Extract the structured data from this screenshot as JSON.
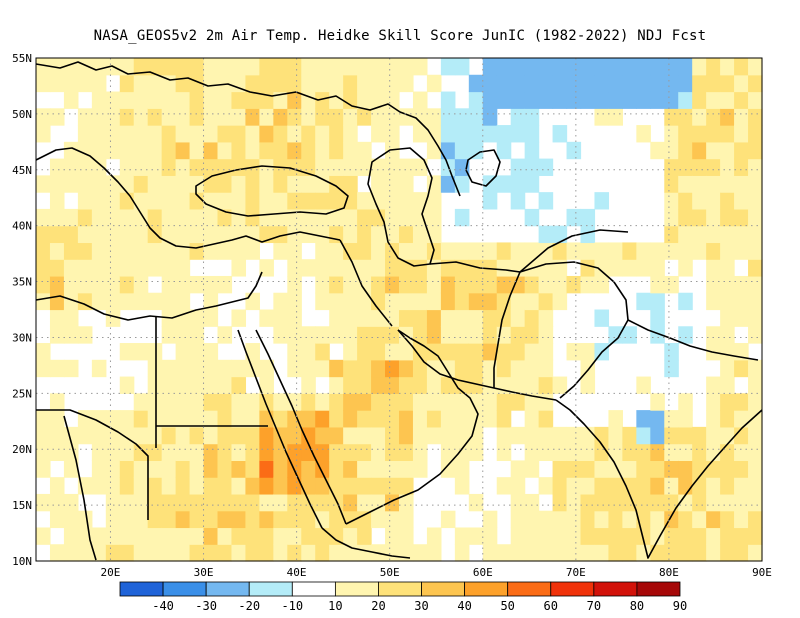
{
  "title": "NASA_GEOS5v2  2m Air Temp. Heidke Skill Score JunIC (1982-2022) NDJ Fcst",
  "map": {
    "lon_range": [
      12,
      90
    ],
    "lat_range": [
      10,
      55
    ],
    "lat_labels": [
      "55N",
      "50N",
      "45N",
      "40N",
      "35N",
      "30N",
      "25N",
      "20N",
      "15N",
      "10N"
    ],
    "lon_labels": [
      "20E",
      "30E",
      "40E",
      "50E",
      "60E",
      "70E",
      "80E",
      "90E"
    ],
    "gridlines": "dotted"
  },
  "colorbar": {
    "labels": [
      "-40",
      "-30",
      "-20",
      "-10",
      "10",
      "20",
      "30",
      "40",
      "50",
      "60",
      "70",
      "80",
      "90"
    ],
    "colors": [
      "#1f63d8",
      "#3a8fe8",
      "#74b8f0",
      "#b4ecf8",
      "#ffffff",
      "#fff5b0",
      "#fee27a",
      "#fdc550",
      "#fda12a",
      "#fb6c16",
      "#f0320a",
      "#d2120a",
      "#a60808"
    ]
  },
  "colors": {
    "land_outline": "#000000",
    "grid": "#9a9a9a"
  }
}
